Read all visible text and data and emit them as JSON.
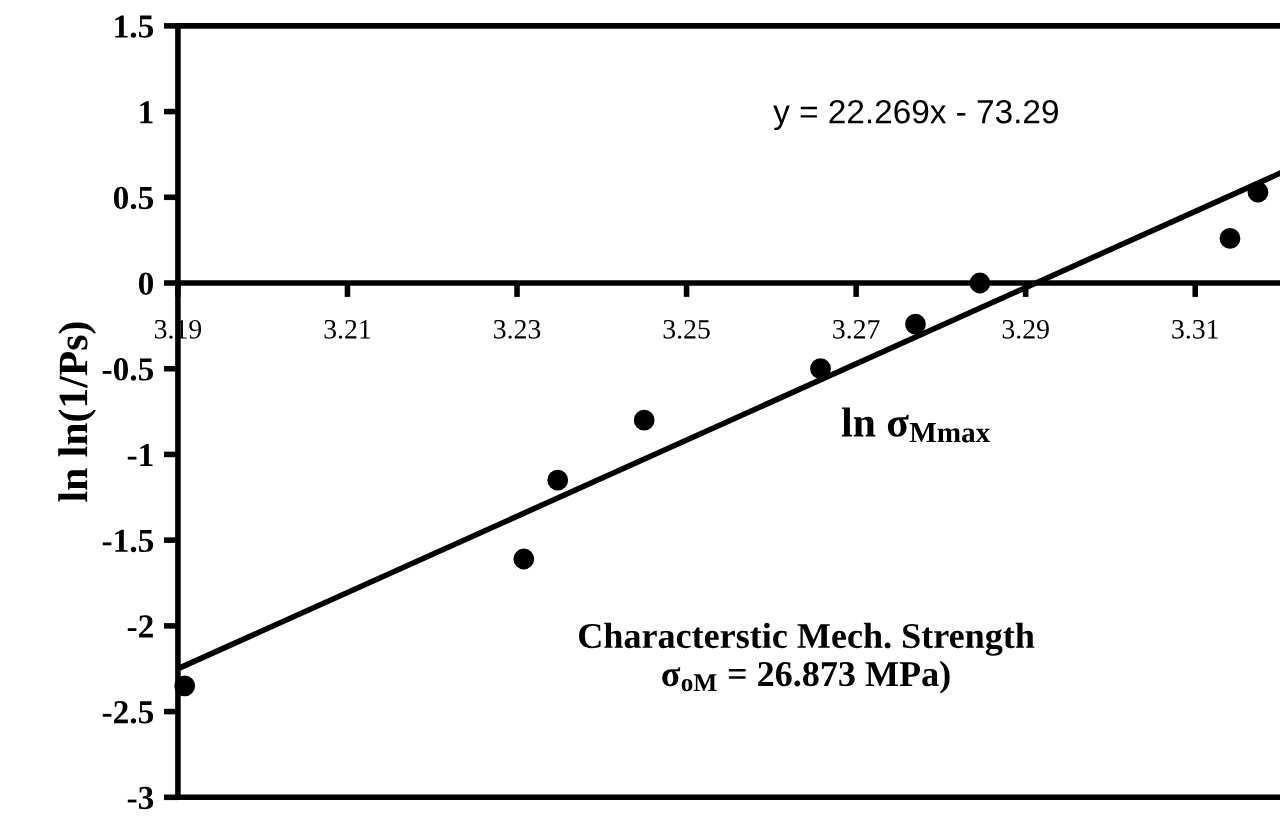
{
  "chart_data": {
    "type": "scatter",
    "xlabel": "ln σ$_{Mmax}$",
    "ylabel": "ln ln(1/Ps)",
    "series": [
      {
        "color": "#000000",
        "marker": "circle",
        "x": [
          3.1908,
          3.2308,
          3.2348,
          3.245,
          3.2658,
          3.277,
          3.2846,
          3.3141,
          3.3174
        ],
        "values": [
          -2.35,
          -1.61,
          -1.15,
          -0.8,
          -0.5,
          -0.24,
          0,
          0.26,
          0.53
        ]
      },
      {
        "type": "line",
        "color": "#000000",
        "marker": "none",
        "line_style": "solid",
        "x": [
          3.19,
          3.32
        ],
        "values": [
          -2.25,
          0.64
        ]
      }
    ],
    "xlim": [
      3.19,
      3.32
    ],
    "xticks": [
      3.19,
      3.21,
      3.23,
      3.25,
      3.27,
      3.29,
      3.31
    ],
    "ylim": [
      -3,
      1.5
    ],
    "yticks": [
      -3,
      -2.5,
      -2,
      -1.5,
      -1,
      -0.5,
      0,
      0.5,
      1,
      1.5
    ],
    "grid": false,
    "legend": false,
    "annotations": [
      "y = 22.269x - 73.29",
      "Characterstic Mech. Strength\nσ$_{oM}$ = 26.873 MPa)"
    ]
  }
}
